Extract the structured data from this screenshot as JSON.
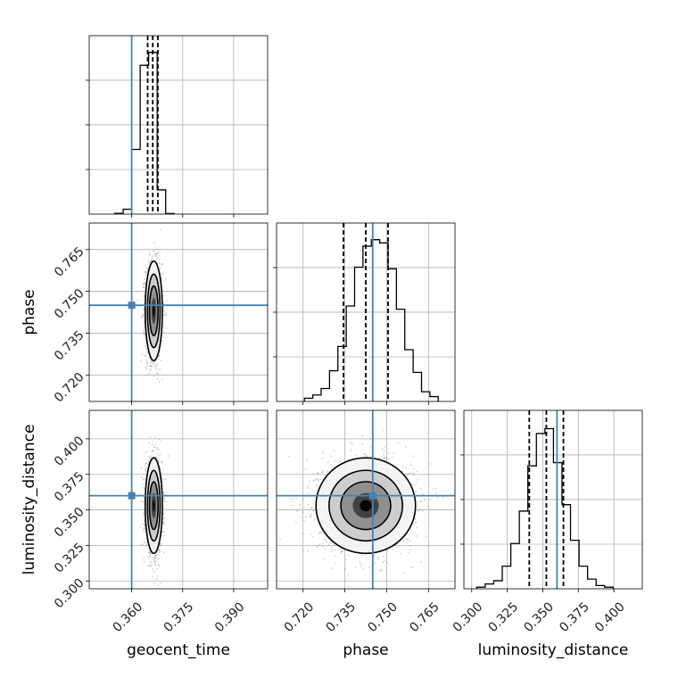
{
  "chart_data": {
    "type": "corner",
    "parameters": [
      "geocent_time",
      "phase",
      "luminosity_distance"
    ],
    "truths": [
      0.36,
      0.745,
      0.36
    ],
    "truth_color": "#4682b4",
    "grid": true,
    "ranges": [
      [
        0.3475,
        0.4
      ],
      [
        0.7105,
        0.7745
      ],
      [
        0.2945,
        0.42
      ]
    ],
    "ticks": [
      [
        0.36,
        0.375,
        0.39
      ],
      [
        0.72,
        0.735,
        0.75,
        0.765
      ],
      [
        0.3,
        0.325,
        0.35,
        0.375,
        0.4
      ]
    ],
    "tick_labels": [
      [
        "0.360",
        "0.375",
        "0.390"
      ],
      [
        "0.720",
        "0.735",
        "0.750",
        "0.765"
      ],
      [
        "0.300",
        "0.325",
        "0.350",
        "0.375",
        "0.400"
      ]
    ],
    "histograms": [
      {
        "parameter": "geocent_time",
        "bin_edges": [
          0.355,
          0.3575,
          0.36,
          0.3625,
          0.365,
          0.3675,
          0.37,
          0.3725
        ],
        "counts": [
          0.005,
          0.03,
          0.4,
          0.92,
          1.0,
          0.15,
          0.003
        ],
        "quantiles": [
          0.3647,
          0.3662,
          0.3677
        ]
      },
      {
        "parameter": "phase",
        "bin_edges": [
          0.7205,
          0.7235,
          0.7265,
          0.7295,
          0.7325,
          0.7355,
          0.7385,
          0.7415,
          0.7445,
          0.7475,
          0.7505,
          0.7535,
          0.7565,
          0.7595,
          0.7625,
          0.7655,
          0.7685
        ],
        "counts": [
          0.02,
          0.04,
          0.08,
          0.19,
          0.34,
          0.59,
          0.83,
          0.96,
          1.0,
          0.98,
          0.82,
          0.57,
          0.32,
          0.18,
          0.06,
          0.03
        ],
        "quantiles": [
          0.7345,
          0.7425,
          0.7505
        ]
      },
      {
        "parameter": "luminosity_distance",
        "bin_edges": [
          0.3035,
          0.3095,
          0.3155,
          0.3215,
          0.3275,
          0.3335,
          0.3395,
          0.3455,
          0.3515,
          0.3575,
          0.3635,
          0.3695,
          0.3755,
          0.3815,
          0.3875,
          0.3935,
          0.3995
        ],
        "counts": [
          0.01,
          0.03,
          0.05,
          0.14,
          0.28,
          0.48,
          0.76,
          0.96,
          0.99,
          0.78,
          0.52,
          0.3,
          0.14,
          0.06,
          0.02,
          0.01
        ],
        "quantiles": [
          0.3405,
          0.3525,
          0.3645
        ]
      }
    ],
    "scatter_panels": [
      {
        "x": "geocent_time",
        "y": "phase",
        "center": [
          0.3665,
          0.743
        ],
        "sigma": [
          0.0012,
          0.0085
        ]
      },
      {
        "x": "geocent_time",
        "y": "luminosity_distance",
        "center": [
          0.3665,
          0.353
        ],
        "sigma": [
          0.0012,
          0.016
        ]
      },
      {
        "x": "phase",
        "y": "luminosity_distance",
        "center": [
          0.7425,
          0.353
        ],
        "sigma": [
          0.0085,
          0.016
        ]
      }
    ]
  }
}
